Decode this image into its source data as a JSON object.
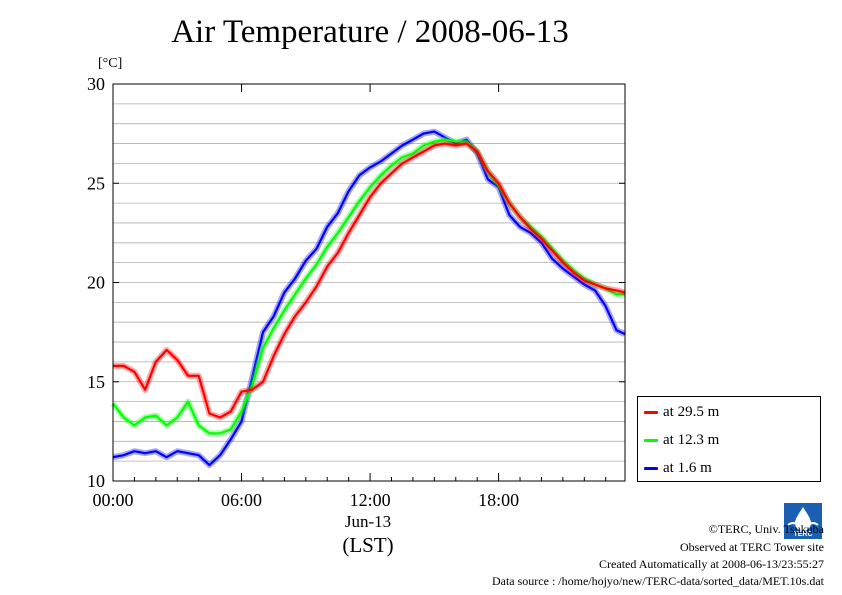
{
  "header": {
    "title": "Air Temperature / 2008-06-13",
    "unit": "[°C]"
  },
  "axis": {
    "x_date": "Jun-13",
    "x_tz": "(LST)"
  },
  "footer": {
    "line1": "©TERC, Univ. Tsukuba",
    "line2": "Observed at TERC Tower site",
    "line3": "Created Automatically at 2008-06-13/23:55:27",
    "line4": "Data source : /home/hojyo/new/TERC-data/sorted_data/MET.10s.dat",
    "logo_icon": "terc-logo-icon",
    "logo_text": "TERC"
  },
  "chart_data": {
    "type": "line",
    "title": "Air Temperature / 2008-06-13",
    "xlabel": "Jun-13 (LST)",
    "ylabel": "[°C]",
    "xlim": [
      0,
      23.9
    ],
    "ylim": [
      10,
      30
    ],
    "x_ticks": [
      0,
      6,
      12,
      18
    ],
    "x_tick_labels": [
      "00:00",
      "06:00",
      "12:00",
      "18:00"
    ],
    "y_ticks": [
      10,
      15,
      20,
      25,
      30
    ],
    "y_tick_labels": [
      "10",
      "15",
      "20",
      "25",
      "30"
    ],
    "grid": true,
    "legend_position": "right",
    "x": [
      0,
      0.5,
      1,
      1.5,
      2,
      2.5,
      3,
      3.5,
      4,
      4.5,
      5,
      5.5,
      6,
      6.5,
      7,
      7.5,
      8,
      8.5,
      9,
      9.5,
      10,
      10.5,
      11,
      11.5,
      12,
      12.5,
      13,
      13.5,
      14,
      14.5,
      15,
      15.5,
      16,
      16.5,
      17,
      17.5,
      18,
      18.5,
      19,
      19.5,
      20,
      20.5,
      21,
      21.5,
      22,
      22.5,
      23,
      23.5,
      23.9
    ],
    "series": [
      {
        "name": "at 29.5 m",
        "color": "#ff0000",
        "values": [
          15.8,
          15.8,
          15.5,
          14.6,
          16.0,
          16.6,
          16.1,
          15.3,
          15.3,
          13.4,
          13.2,
          13.5,
          14.5,
          14.6,
          15.0,
          16.3,
          17.4,
          18.3,
          19.0,
          19.8,
          20.8,
          21.5,
          22.5,
          23.4,
          24.3,
          25.0,
          25.5,
          26.0,
          26.3,
          26.6,
          26.9,
          27.0,
          26.9,
          27.0,
          26.6,
          25.6,
          25.0,
          24.0,
          23.3,
          22.7,
          22.2,
          21.6,
          21.0,
          20.5,
          20.1,
          19.9,
          19.7,
          19.6,
          19.5
        ]
      },
      {
        "name": "at 12.3 m",
        "color": "#00ff00",
        "values": [
          13.9,
          13.2,
          12.8,
          13.2,
          13.3,
          12.8,
          13.2,
          14.0,
          12.8,
          12.4,
          12.4,
          12.6,
          13.5,
          14.8,
          16.7,
          17.7,
          18.6,
          19.4,
          20.2,
          20.9,
          21.8,
          22.5,
          23.3,
          24.1,
          24.8,
          25.4,
          25.9,
          26.3,
          26.5,
          26.9,
          27.1,
          27.2,
          27.1,
          27.1,
          26.6,
          25.6,
          24.9,
          24.0,
          23.3,
          22.8,
          22.3,
          21.7,
          21.1,
          20.6,
          20.2,
          19.9,
          19.7,
          19.4,
          19.4
        ]
      },
      {
        "name": "at 1.6 m",
        "color": "#0000ff",
        "values": [
          11.2,
          11.3,
          11.5,
          11.4,
          11.5,
          11.2,
          11.5,
          11.4,
          11.3,
          10.8,
          11.3,
          12.1,
          13.0,
          15.2,
          17.5,
          18.3,
          19.5,
          20.2,
          21.1,
          21.7,
          22.8,
          23.5,
          24.6,
          25.4,
          25.8,
          26.1,
          26.5,
          26.9,
          27.2,
          27.5,
          27.6,
          27.3,
          27.0,
          27.2,
          26.5,
          25.2,
          24.8,
          23.4,
          22.8,
          22.5,
          22.0,
          21.2,
          20.7,
          20.3,
          19.9,
          19.6,
          18.8,
          17.6,
          17.4
        ]
      }
    ]
  }
}
